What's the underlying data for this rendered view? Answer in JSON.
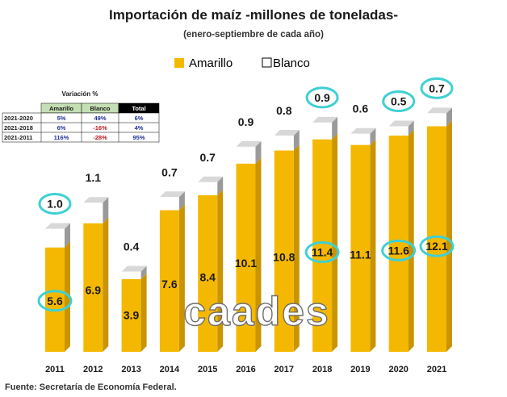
{
  "chart_data": {
    "type": "bar",
    "stacked": true,
    "title": "Importación de maíz -millones de toneladas-",
    "subtitle": "(enero-septiembre de cada año)",
    "categories": [
      "2011",
      "2012",
      "2013",
      "2014",
      "2015",
      "2016",
      "2017",
      "2018",
      "2019",
      "2020",
      "2021"
    ],
    "series": [
      {
        "name": "Amarillo",
        "color": "#f5b800",
        "values": [
          5.6,
          6.9,
          3.9,
          7.6,
          8.4,
          10.1,
          10.8,
          11.4,
          11.1,
          11.6,
          12.1
        ],
        "labels": [
          "5.6",
          "6.9",
          "3.9",
          "7.6",
          "8.4",
          "10.1",
          "10.8",
          "11.4",
          "11.1",
          "11.6",
          "12.1"
        ]
      },
      {
        "name": "Blanco",
        "color": "#ffffff",
        "values": [
          1.0,
          1.1,
          0.4,
          0.7,
          0.7,
          0.9,
          0.8,
          0.9,
          0.6,
          0.5,
          0.7
        ],
        "labels": [
          "1.0",
          "1.1",
          "0.4",
          "0.7",
          "0.7",
          "0.9",
          "0.8",
          "0.9",
          "0.6",
          "0.5",
          "0.7"
        ]
      }
    ],
    "highlighted": {
      "Amarillo": [
        "2011",
        "2018",
        "2020",
        "2021"
      ],
      "Blanco": [
        "2011",
        "2018",
        "2020",
        "2021"
      ]
    },
    "highlight_color": "#3fd0d4",
    "xlabel": "",
    "ylabel": "",
    "ylim": [
      0,
      15
    ],
    "grid": false,
    "legend_position": "top-center"
  },
  "variation_table": {
    "caption": "Variación %",
    "headers": [
      "",
      "Amarillo",
      "Blanco",
      "Total"
    ],
    "rows": [
      [
        "2021-2020",
        "5%",
        "49%",
        "6%"
      ],
      [
        "2021-2018",
        "6%",
        "-16%",
        "4%"
      ],
      [
        "2021-2011",
        "116%",
        "-28%",
        "95%"
      ]
    ]
  },
  "watermark": "caades",
  "source": "Fuente: Secretaría de Economía Federal.",
  "colors": {
    "amarillo": "#f5b800",
    "amarillo_side": "#c99400",
    "blanco_top": "#d8d8d8",
    "blanco_side": "#9a9a9a",
    "header_green": "#c5dfb4",
    "header_black": "#000000",
    "value_blue": "#1f2f9a"
  }
}
